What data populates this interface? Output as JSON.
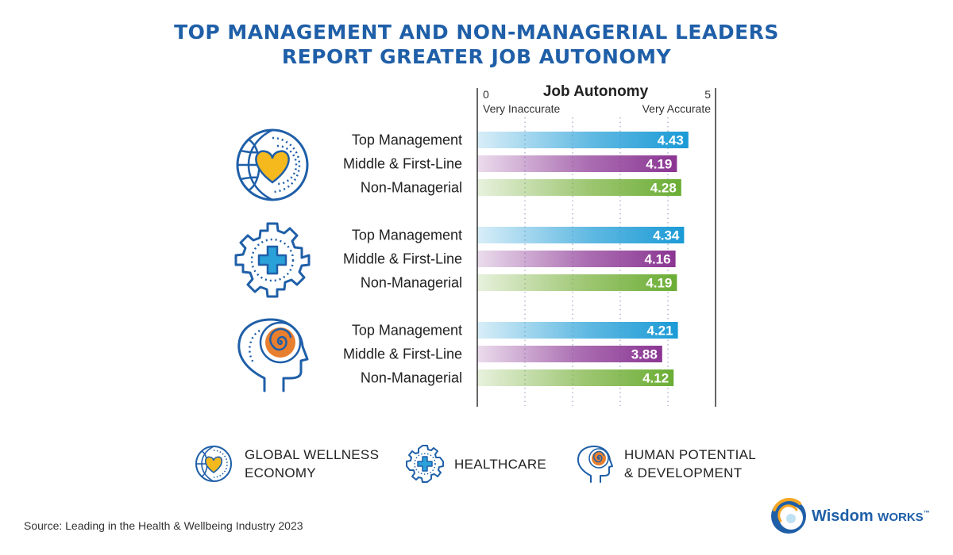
{
  "title_line1": "TOP MANAGEMENT AND NON-MANAGERIAL LEADERS",
  "title_line2": "REPORT GREATER JOB AUTONOMY",
  "source": "Source: Leading in the Health & Wellbeing Industry 2023",
  "logo": {
    "word1": "Wisdom",
    "word2": "WORKS",
    "tm": "™"
  },
  "colors": {
    "title": "#1f5fa8",
    "top_management": "#2aa1d8",
    "middle_first_line": "#8f3e98",
    "non_managerial": "#7cb342"
  },
  "legend": [
    {
      "icon": "globe-heart-icon",
      "line1": "GLOBAL WELLNESS",
      "line2": "ECONOMY"
    },
    {
      "icon": "gear-plus-icon",
      "line1": "HEALTHCARE",
      "line2": ""
    },
    {
      "icon": "head-spiral-icon",
      "line1": "HUMAN POTENTIAL",
      "line2": "& DEVELOPMENT"
    }
  ],
  "chart_data": {
    "type": "bar",
    "orientation": "horizontal",
    "title": "Job Autonomy",
    "xlim": [
      0,
      5
    ],
    "axis_min_label": "0",
    "axis_max_label": "5",
    "axis_left_caption": "Very Inaccurate",
    "axis_right_caption": "Very Accurate",
    "grid": true,
    "groups": [
      {
        "icon": "globe-heart-icon",
        "bars": [
          {
            "label": "Top Management",
            "value": 4.43
          },
          {
            "label": "Middle & First-Line",
            "value": 4.19
          },
          {
            "label": "Non-Managerial",
            "value": 4.28
          }
        ]
      },
      {
        "icon": "gear-plus-icon",
        "bars": [
          {
            "label": "Top Management",
            "value": 4.34
          },
          {
            "label": "Middle & First-Line",
            "value": 4.16
          },
          {
            "label": "Non-Managerial",
            "value": 4.19
          }
        ]
      },
      {
        "icon": "head-spiral-icon",
        "bars": [
          {
            "label": "Top Management",
            "value": 4.21
          },
          {
            "label": "Middle & First-Line",
            "value": 3.88
          },
          {
            "label": "Non-Managerial",
            "value": 4.12
          }
        ]
      }
    ]
  }
}
